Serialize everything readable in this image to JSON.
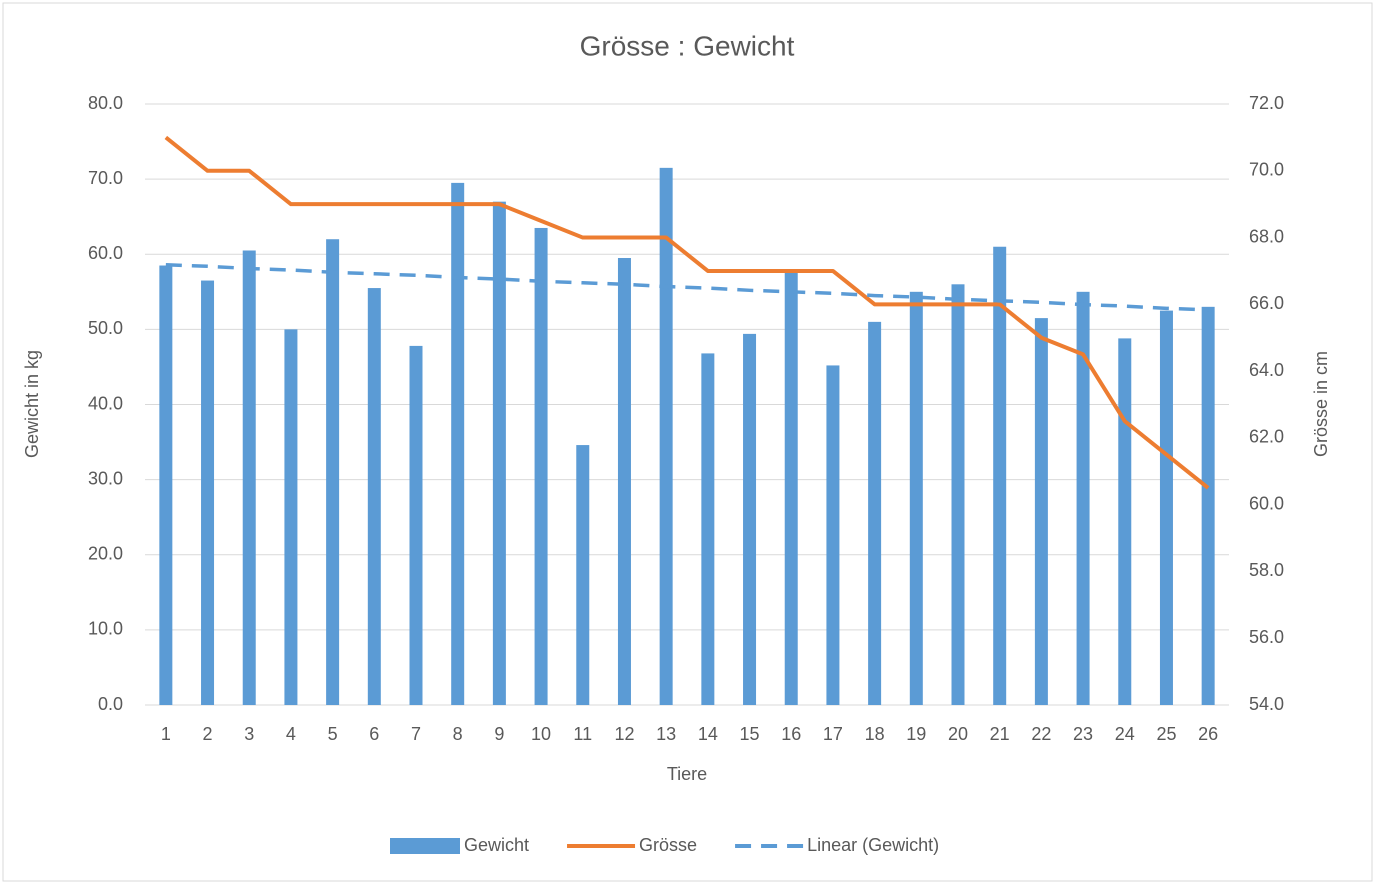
{
  "chart_data": {
    "type": "bar_line",
    "title": "Grösse : Gewicht",
    "x_label": "Tiere",
    "y_label": "Gewicht in kg",
    "y2_label": "Grösse in cm",
    "categories": [
      "1",
      "2",
      "3",
      "4",
      "5",
      "6",
      "7",
      "8",
      "9",
      "10",
      "11",
      "12",
      "13",
      "14",
      "15",
      "16",
      "17",
      "18",
      "19",
      "20",
      "21",
      "22",
      "23",
      "24",
      "25",
      "26"
    ],
    "series": [
      {
        "name": "Gewicht",
        "type": "bar",
        "color": "#5b9bd5",
        "values": [
          58.5,
          56.5,
          60.5,
          50,
          62,
          55.5,
          47.8,
          69.5,
          67,
          63.5,
          34.6,
          59.5,
          71.5,
          46.8,
          49.4,
          58,
          45.2,
          51,
          55,
          56,
          61,
          51.5,
          55,
          48.8,
          52.5,
          53
        ]
      },
      {
        "name": "Grösse",
        "type": "line",
        "axis": "y2",
        "color": "#ed7d31",
        "values": [
          71,
          70,
          70,
          69,
          69,
          69,
          69,
          69,
          69,
          68.5,
          68,
          68,
          68,
          67,
          67,
          67,
          67,
          66,
          66,
          66,
          66,
          65,
          64.5,
          62.5,
          61.5,
          60.5
        ]
      },
      {
        "name": "Linear (Gewicht)",
        "type": "dashed",
        "color": "#5b9bd5",
        "values": [
          58.6,
          58.4,
          58.1,
          57.9,
          57.6,
          57.4,
          57.2,
          56.9,
          56.7,
          56.4,
          56.2,
          56.0,
          55.7,
          55.5,
          55.2,
          55.0,
          54.8,
          54.5,
          54.3,
          54.0,
          53.8,
          53.6,
          53.3,
          53.1,
          52.8,
          52.6
        ]
      }
    ],
    "ylim": [
      0,
      80
    ],
    "yticks": [
      {
        "value": 0,
        "label": "0.0"
      },
      {
        "value": 10,
        "label": "10.0"
      },
      {
        "value": 20,
        "label": "20.0"
      },
      {
        "value": 30,
        "label": "30.0"
      },
      {
        "value": 40,
        "label": "40.0"
      },
      {
        "value": 50,
        "label": "50.0"
      },
      {
        "value": 60,
        "label": "60.0"
      },
      {
        "value": 70,
        "label": "70.0"
      },
      {
        "value": 80,
        "label": "80.0"
      }
    ],
    "y2lim": [
      54,
      72
    ],
    "y2ticks": [
      {
        "value": 54,
        "label": "54.0"
      },
      {
        "value": 56,
        "label": "56.0"
      },
      {
        "value": 58,
        "label": "58.0"
      },
      {
        "value": 60,
        "label": "60.0"
      },
      {
        "value": 62,
        "label": "62.0"
      },
      {
        "value": 64,
        "label": "64.0"
      },
      {
        "value": 66,
        "label": "66.0"
      },
      {
        "value": 68,
        "label": "68.0"
      },
      {
        "value": 70,
        "label": "70.0"
      },
      {
        "value": 72,
        "label": "72.0"
      }
    ],
    "grid": true,
    "legend": "bottom"
  }
}
